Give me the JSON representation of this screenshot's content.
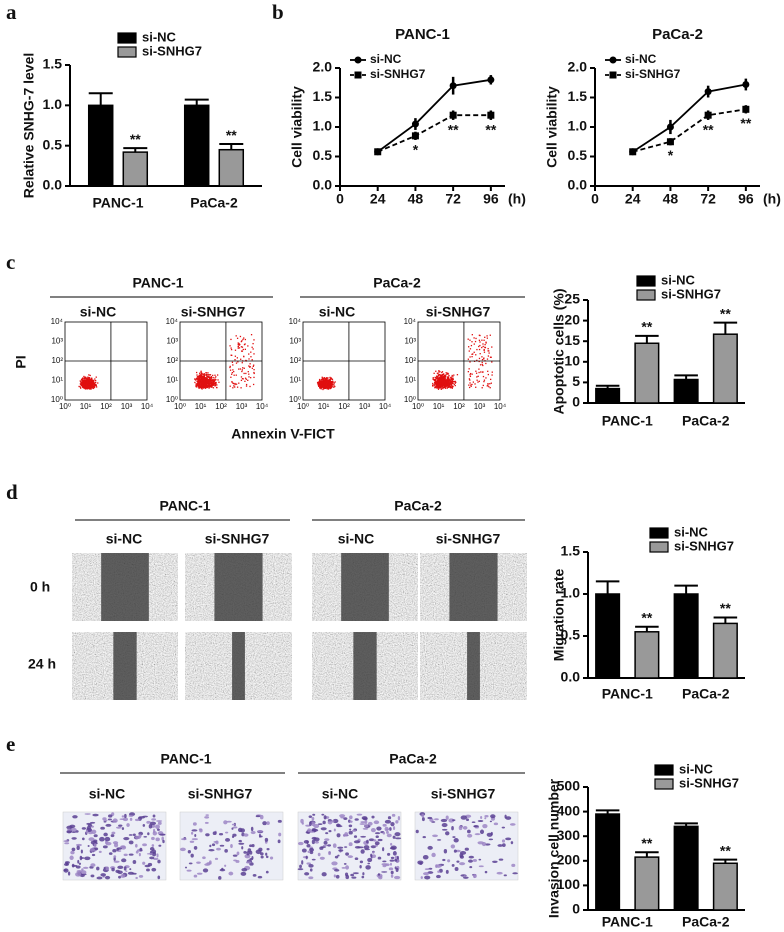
{
  "panel_letters": [
    "a",
    "b",
    "c",
    "d",
    "e"
  ],
  "flow_cytometry": {
    "group_labels": [
      "PANC-1",
      "PaCa-2"
    ],
    "condition_labels": [
      "si-NC",
      "si-SNHG7",
      "si-NC",
      "si-SNHG7"
    ],
    "y_label": "PI",
    "x_label": "Annexin V-FICT",
    "axis_tick_labels": [
      "10⁰",
      "10¹",
      "10²",
      "10³",
      "10⁴"
    ]
  },
  "migration_images": {
    "group_labels": [
      "PANC-1",
      "PaCa-2"
    ],
    "condition_labels": [
      "si-NC",
      "si-SNHG7",
      "si-NC",
      "si-SNHG7"
    ],
    "time_labels": [
      "0 h",
      "24 h"
    ]
  },
  "invasion_images": {
    "group_labels": [
      "PANC-1",
      "PaCa-2"
    ],
    "condition_labels": [
      "si-NC",
      "si-SNHG7",
      "si-NC",
      "si-SNHG7"
    ]
  },
  "chart_data": [
    {
      "type": "bar",
      "y_label": "Relative  SNHG-7 level",
      "categories": [
        "PANC-1",
        "PaCa-2"
      ],
      "series": [
        {
          "name": "si-NC",
          "color": "#000000",
          "values": [
            1.0,
            1.0
          ],
          "errors": [
            0.15,
            0.07
          ]
        },
        {
          "name": "si-SNHG7",
          "color": "#999999",
          "values": [
            0.42,
            0.45
          ],
          "errors": [
            0.05,
            0.07
          ],
          "significance": [
            "**",
            "**"
          ]
        }
      ],
      "ylim": [
        0,
        1.5
      ],
      "yticks": [
        {
          "value": 0,
          "label": "0.0"
        },
        {
          "value": 0.5,
          "label": "0.5"
        },
        {
          "value": 1,
          "label": "1.0"
        },
        {
          "value": 1.5,
          "label": "1.5"
        }
      ],
      "legend": "top"
    },
    {
      "type": "line",
      "title": "PANC-1",
      "y_label": "Cell viability",
      "x_label": "(h)",
      "x": [
        24,
        48,
        72,
        96
      ],
      "series": [
        {
          "name": "si-NC",
          "color": "#000000",
          "line_style": "solid",
          "marker": "circle",
          "values": [
            0.58,
            1.05,
            1.7,
            1.8
          ],
          "errors": [
            0.05,
            0.1,
            0.15,
            0.08
          ]
        },
        {
          "name": "si-SNHG7",
          "color": "#000000",
          "line_style": "dashed",
          "marker": "square",
          "values": [
            0.58,
            0.85,
            1.2,
            1.2
          ],
          "errors": [
            0.05,
            0.07,
            0.08,
            0.08
          ],
          "significance": [
            null,
            "*",
            "**",
            "**"
          ]
        }
      ],
      "xlim": [
        0,
        105
      ],
      "xticks": [
        0,
        24,
        48,
        72,
        96
      ],
      "ylim": [
        0,
        2
      ],
      "yticks": [
        {
          "value": 0,
          "label": "0.0"
        },
        {
          "value": 0.5,
          "label": "0.5"
        },
        {
          "value": 1,
          "label": "1.0"
        },
        {
          "value": 1.5,
          "label": "1.5"
        },
        {
          "value": 2,
          "label": "2.0"
        }
      ],
      "legend": "top-left"
    },
    {
      "type": "line",
      "title": "PaCa-2",
      "y_label": "Cell viability",
      "x_label": "(h)",
      "x": [
        24,
        48,
        72,
        96
      ],
      "series": [
        {
          "name": "si-NC",
          "color": "#000000",
          "line_style": "solid",
          "marker": "circle",
          "values": [
            0.58,
            1.0,
            1.6,
            1.72
          ],
          "errors": [
            0.05,
            0.12,
            0.1,
            0.1
          ]
        },
        {
          "name": "si-SNHG7",
          "color": "#000000",
          "line_style": "dashed",
          "marker": "square",
          "values": [
            0.58,
            0.75,
            1.2,
            1.3
          ],
          "errors": [
            0.05,
            0.06,
            0.08,
            0.07
          ],
          "significance": [
            null,
            "*",
            "**",
            "**"
          ]
        }
      ],
      "xlim": [
        0,
        105
      ],
      "xticks": [
        0,
        24,
        48,
        72,
        96
      ],
      "ylim": [
        0,
        2
      ],
      "yticks": [
        {
          "value": 0,
          "label": "0.0"
        },
        {
          "value": 0.5,
          "label": "0.5"
        },
        {
          "value": 1,
          "label": "1.0"
        },
        {
          "value": 1.5,
          "label": "1.5"
        },
        {
          "value": 2,
          "label": "2.0"
        }
      ],
      "legend": "top-left"
    },
    {
      "type": "bar",
      "y_label": "Apoptotic cells (%)",
      "categories": [
        "PANC-1",
        "PaCa-2"
      ],
      "series": [
        {
          "name": "si-NC",
          "color": "#000000",
          "values": [
            3.5,
            5.7
          ],
          "errors": [
            0.7,
            1.0
          ]
        },
        {
          "name": "si-SNHG7",
          "color": "#999999",
          "values": [
            14.5,
            16.7
          ],
          "errors": [
            1.8,
            2.8
          ],
          "significance": [
            "**",
            "**"
          ]
        }
      ],
      "ylim": [
        0,
        25
      ],
      "yticks": [
        0,
        5,
        10,
        15,
        20,
        25
      ],
      "legend": "top"
    },
    {
      "type": "bar",
      "y_label": "Migration rate",
      "categories": [
        "PANC-1",
        "PaCa-2"
      ],
      "series": [
        {
          "name": "si-NC",
          "color": "#000000",
          "values": [
            1.0,
            1.0
          ],
          "errors": [
            0.15,
            0.1
          ]
        },
        {
          "name": "si-SNHG7",
          "color": "#999999",
          "values": [
            0.55,
            0.65
          ],
          "errors": [
            0.06,
            0.07
          ],
          "significance": [
            "**",
            "**"
          ]
        }
      ],
      "ylim": [
        0,
        1.5
      ],
      "yticks": [
        {
          "value": 0,
          "label": "0.0"
        },
        {
          "value": 0.5,
          "label": "0.5"
        },
        {
          "value": 1,
          "label": "1.0"
        },
        {
          "value": 1.5,
          "label": "1.5"
        }
      ],
      "legend": "top"
    },
    {
      "type": "bar",
      "y_label": "Invasion cell number",
      "categories": [
        "PANC-1",
        "PaCa-2"
      ],
      "series": [
        {
          "name": "si-NC",
          "color": "#000000",
          "values": [
            390,
            340
          ],
          "errors": [
            15,
            12
          ]
        },
        {
          "name": "si-SNHG7",
          "color": "#999999",
          "values": [
            215,
            190
          ],
          "errors": [
            20,
            15
          ],
          "significance": [
            "**",
            "**"
          ]
        }
      ],
      "ylim": [
        0,
        500
      ],
      "yticks": [
        0,
        100,
        200,
        300,
        400,
        500
      ],
      "legend": "top"
    }
  ]
}
